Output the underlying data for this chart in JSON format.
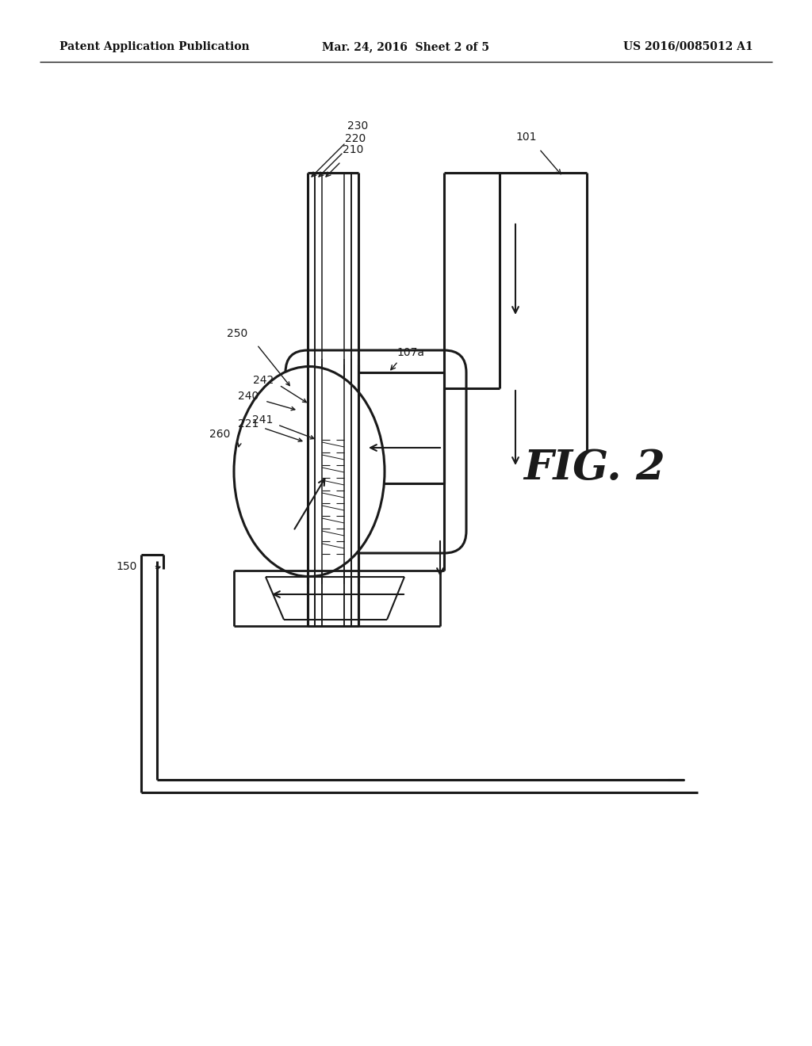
{
  "title_left": "Patent Application Publication",
  "title_center": "Mar. 24, 2016  Sheet 2 of 5",
  "title_right": "US 2016/0085012 A1",
  "background_color": "#ffffff",
  "line_color": "#1a1a1a"
}
